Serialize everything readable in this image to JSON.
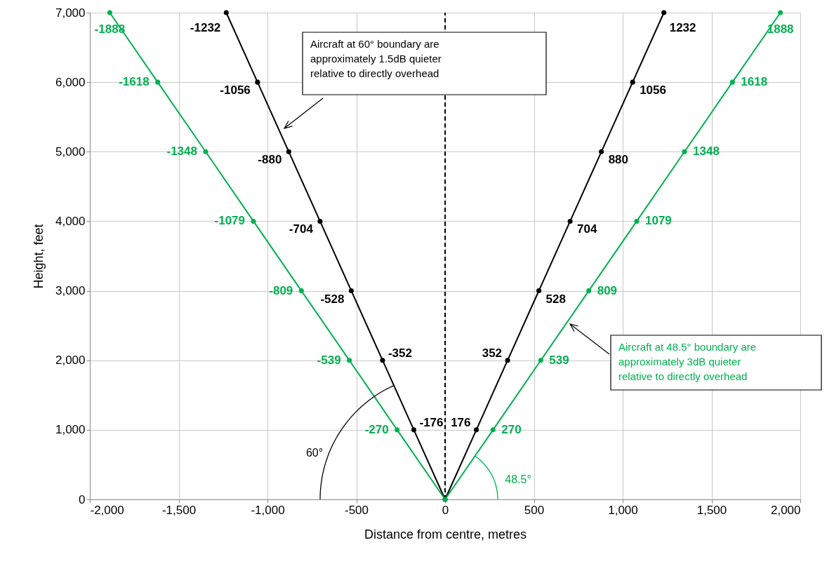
{
  "chart_data": {
    "type": "line",
    "xlabel": "Distance from centre, metres",
    "ylabel": "Height, feet",
    "xlim": [
      -2000,
      2000
    ],
    "xticks": [
      {
        "value": -2000,
        "label": "-2,000"
      },
      {
        "value": -1500,
        "label": "-1,500"
      },
      {
        "value": -1000,
        "label": "-1,000"
      },
      {
        "value": -500,
        "label": "-500"
      },
      0,
      500,
      {
        "value": 1000,
        "label": "1,000"
      },
      {
        "value": 1500,
        "label": "1,500"
      },
      {
        "value": 2000,
        "label": "2,000"
      }
    ],
    "ylim": [
      0,
      7000
    ],
    "yticks": [
      0,
      {
        "value": 1000,
        "label": "1,000"
      },
      {
        "value": 2000,
        "label": "2,000"
      },
      {
        "value": 3000,
        "label": "3,000"
      },
      {
        "value": 4000,
        "label": "4,000"
      },
      {
        "value": 5000,
        "label": "5,000"
      },
      {
        "value": 6000,
        "label": "6,000"
      },
      {
        "value": 7000,
        "label": "7,000"
      }
    ],
    "grid": true,
    "marker": "circle",
    "series": [
      {
        "color": "#000000",
        "x": [
          -1232,
          -1056,
          -880,
          -704,
          -528,
          -352,
          -176,
          0,
          176,
          352,
          528,
          704,
          880,
          1056,
          1232
        ],
        "values": [
          7000,
          6000,
          5000,
          4000,
          3000,
          2000,
          1000,
          0,
          1000,
          2000,
          3000,
          4000,
          5000,
          6000,
          7000
        ]
      },
      {
        "color": "#00b050",
        "x": [
          -1888,
          -1618,
          -1348,
          -1079,
          -809,
          -539,
          -270,
          0,
          270,
          539,
          809,
          1079,
          1348,
          1618,
          1888
        ],
        "values": [
          7000,
          6000,
          5000,
          4000,
          3000,
          2000,
          1000,
          0,
          1000,
          2000,
          3000,
          4000,
          5000,
          6000,
          7000
        ]
      }
    ],
    "ref_lines": [
      {
        "axis": "x",
        "value": 0,
        "color": "#000000",
        "line_style": "dashed"
      }
    ],
    "annotations": [
      "Aircraft at 60° boundary are\napproximately 1.5dB quieter\nrelative to directly overhead",
      "Aircraft at 48.5° boundary are\napproximately 3dB quieter\nrelative to directly overhead",
      "60°",
      "48.5°",
      {
        "text": "-1232",
        "x": -1232,
        "y": 7000
      },
      {
        "text": "-1056",
        "x": -1056,
        "y": 6000
      },
      {
        "text": "-880",
        "x": -880,
        "y": 5000
      },
      {
        "text": "-704",
        "x": -704,
        "y": 4000
      },
      {
        "text": "-528",
        "x": -528,
        "y": 3000
      },
      {
        "text": "-352",
        "x": -352,
        "y": 2000
      },
      {
        "text": "-176",
        "x": -176,
        "y": 1000
      },
      {
        "text": "176",
        "x": 176,
        "y": 1000
      },
      {
        "text": "352",
        "x": 352,
        "y": 2000
      },
      {
        "text": "528",
        "x": 528,
        "y": 3000
      },
      {
        "text": "704",
        "x": 704,
        "y": 4000
      },
      {
        "text": "880",
        "x": 880,
        "y": 5000
      },
      {
        "text": "1056",
        "x": 1056,
        "y": 6000
      },
      {
        "text": "1232",
        "x": 1232,
        "y": 7000
      },
      {
        "text": "-1888",
        "x": -1888,
        "y": 7000
      },
      {
        "text": "-1618",
        "x": -1618,
        "y": 6000
      },
      {
        "text": "-1348",
        "x": -1348,
        "y": 5000
      },
      {
        "text": "-1079",
        "x": -1079,
        "y": 4000
      },
      {
        "text": "-809",
        "x": -809,
        "y": 3000
      },
      {
        "text": "-539",
        "x": -539,
        "y": 2000
      },
      {
        "text": "-270",
        "x": -270,
        "y": 1000
      },
      {
        "text": "270",
        "x": 270,
        "y": 1000
      },
      {
        "text": "539",
        "x": 539,
        "y": 2000
      },
      {
        "text": "809",
        "x": 809,
        "y": 3000
      },
      {
        "text": "1079",
        "x": 1079,
        "y": 4000
      },
      {
        "text": "1348",
        "x": 1348,
        "y": 5000
      },
      {
        "text": "1618",
        "x": 1618,
        "y": 6000
      },
      {
        "text": "1888",
        "x": 1888,
        "y": 7000
      }
    ]
  }
}
